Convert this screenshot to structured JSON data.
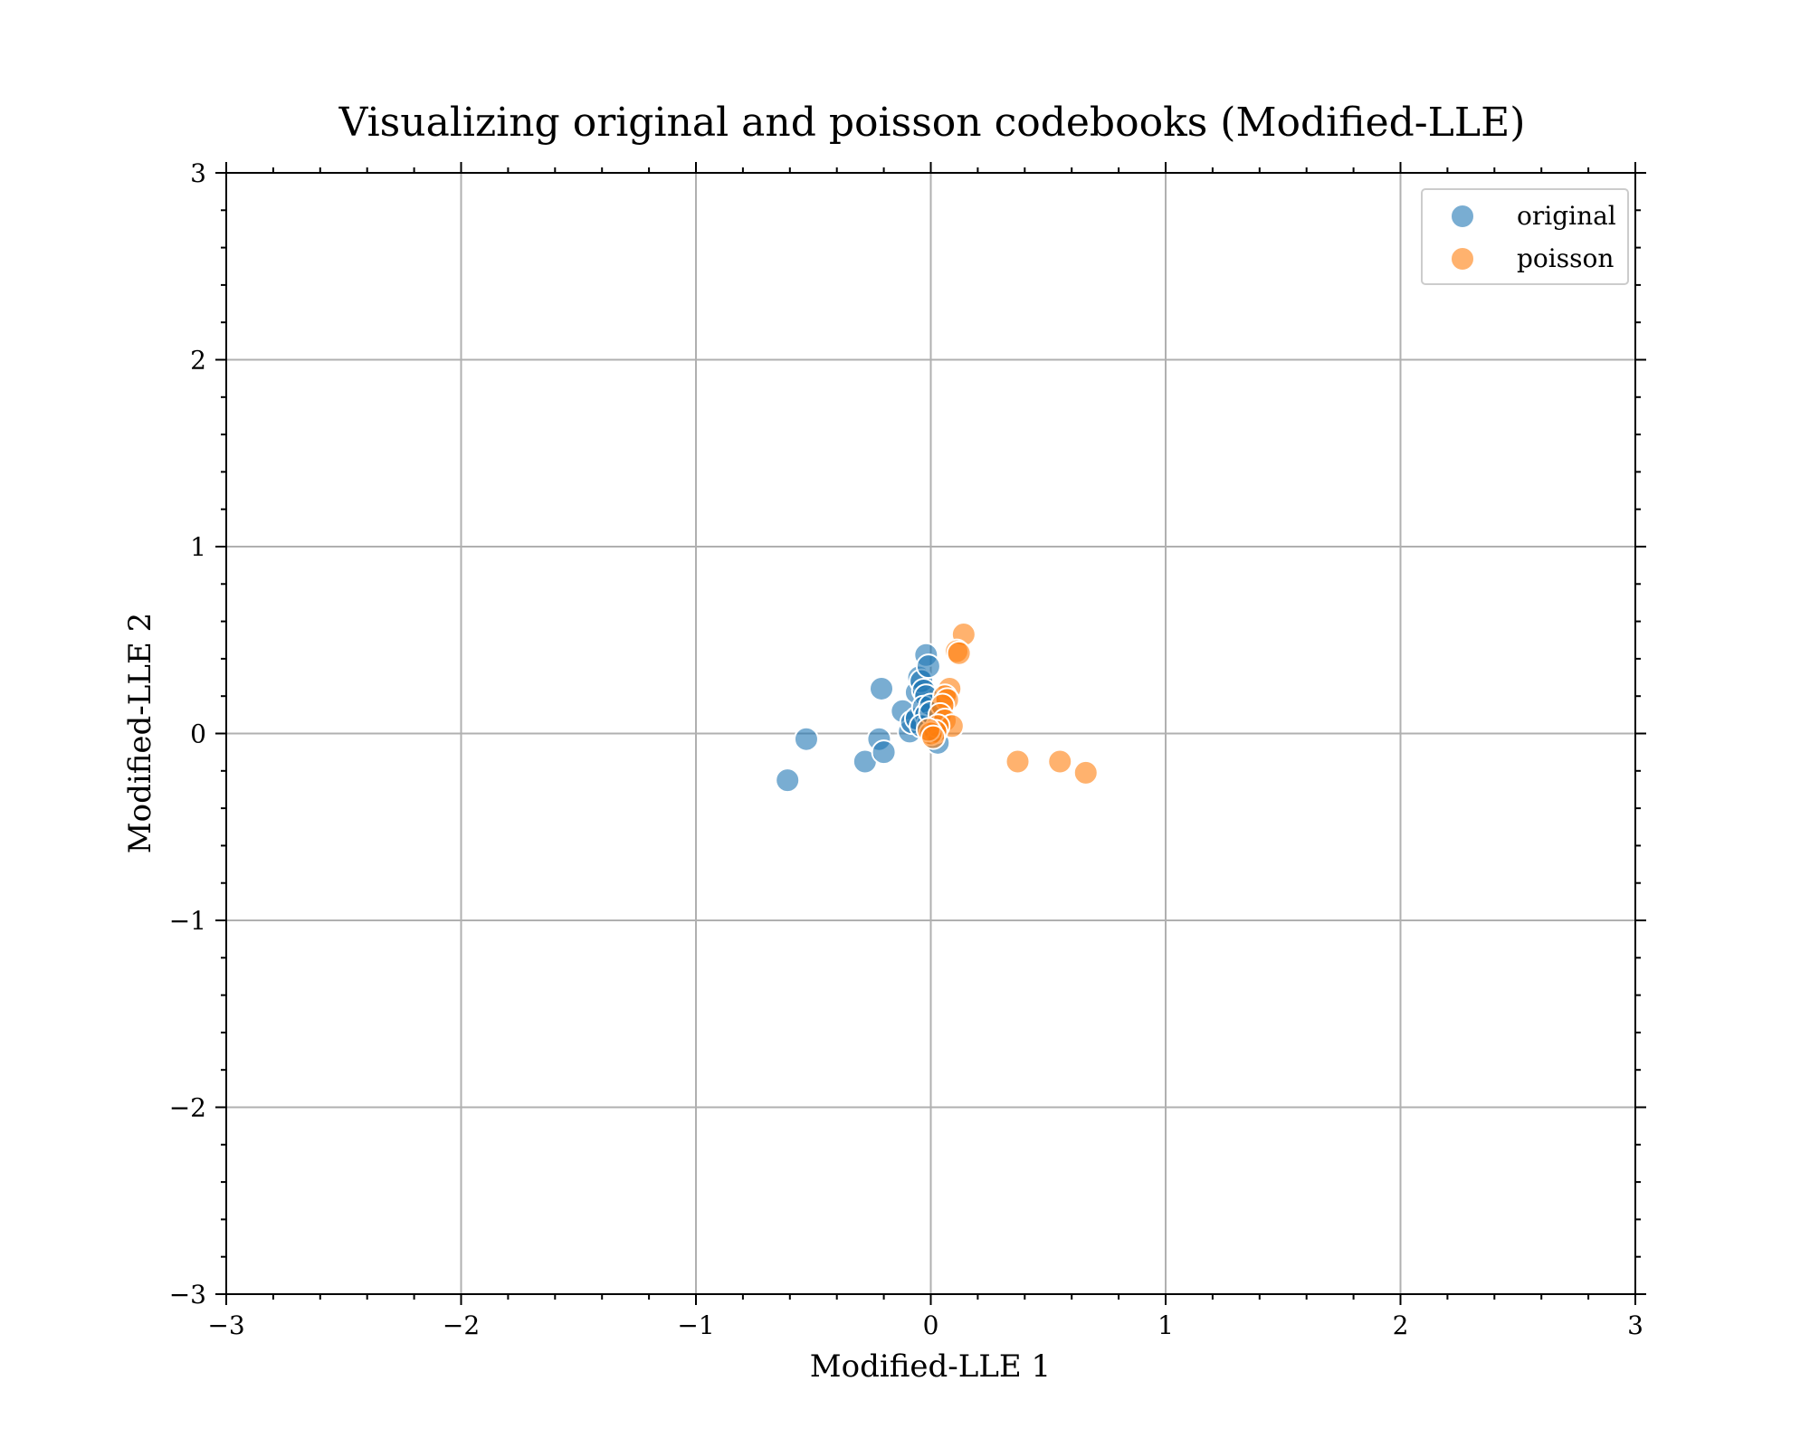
{
  "chart_data": {
    "type": "scatter",
    "title": "Visualizing original and poisson codebooks (Modified-LLE)",
    "xlabel": "Modified-LLE 1",
    "ylabel": "Modified-LLE 2",
    "xlim": [
      -3,
      3
    ],
    "ylim": [
      -3,
      3
    ],
    "xticks": [
      -3,
      -2,
      -1,
      0,
      1,
      2,
      3
    ],
    "yticks": [
      -3,
      -2,
      -1,
      0,
      1,
      2,
      3
    ],
    "xtick_labels": [
      "−3",
      "−2",
      "−1",
      "0",
      "1",
      "2",
      "3"
    ],
    "ytick_labels": [
      "−3",
      "−2",
      "−1",
      "0",
      "1",
      "2",
      "3"
    ],
    "grid": true,
    "legend_position": "top-right",
    "series": [
      {
        "name": "original",
        "color": "#1f77b4",
        "points": [
          [
            -0.61,
            -0.25
          ],
          [
            -0.53,
            -0.03
          ],
          [
            -0.28,
            -0.15
          ],
          [
            -0.22,
            -0.03
          ],
          [
            -0.2,
            -0.1
          ],
          [
            -0.21,
            0.24
          ],
          [
            -0.12,
            0.12
          ],
          [
            -0.09,
            0.01
          ],
          [
            -0.08,
            0.06
          ],
          [
            -0.06,
            0.08
          ],
          [
            -0.06,
            0.22
          ],
          [
            -0.05,
            0.3
          ],
          [
            -0.04,
            0.28
          ],
          [
            -0.03,
            0.23
          ],
          [
            -0.02,
            0.2
          ],
          [
            -0.02,
            0.42
          ],
          [
            -0.01,
            0.36
          ],
          [
            -0.03,
            0.14
          ],
          [
            -0.02,
            0.1
          ],
          [
            -0.01,
            0.05
          ],
          [
            0.0,
            0.15
          ],
          [
            0.01,
            0.0
          ],
          [
            0.02,
            0.02
          ],
          [
            0.03,
            -0.05
          ],
          [
            -0.04,
            0.04
          ],
          [
            0.0,
            0.11
          ]
        ]
      },
      {
        "name": "poisson",
        "color": "#ff7f0e",
        "points": [
          [
            0.14,
            0.53
          ],
          [
            0.11,
            0.44
          ],
          [
            0.12,
            0.43
          ],
          [
            0.08,
            0.24
          ],
          [
            0.06,
            0.2
          ],
          [
            0.07,
            0.18
          ],
          [
            0.05,
            0.15
          ],
          [
            0.04,
            0.1
          ],
          [
            0.06,
            0.07
          ],
          [
            0.09,
            0.04
          ],
          [
            0.03,
            0.04
          ],
          [
            0.02,
            0.01
          ],
          [
            0.0,
            0.0
          ],
          [
            -0.01,
            0.02
          ],
          [
            0.01,
            -0.02
          ],
          [
            0.37,
            -0.15
          ],
          [
            0.55,
            -0.15
          ],
          [
            0.66,
            -0.21
          ]
        ]
      }
    ]
  }
}
